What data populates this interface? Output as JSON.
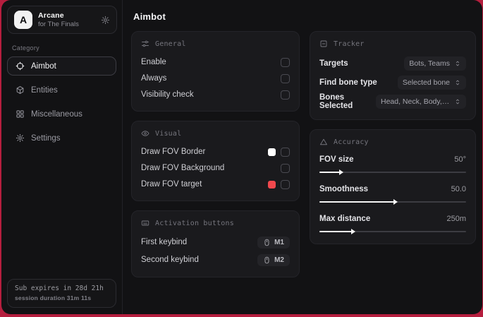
{
  "window": {
    "accent_red": "#b51e3e"
  },
  "sidebar": {
    "app": {
      "initial": "A",
      "name": "Arcane",
      "subtitle": "for The Finals"
    },
    "category_label": "Category",
    "items": [
      {
        "label": "Aimbot",
        "icon": "crosshair-icon",
        "active": true
      },
      {
        "label": "Entities",
        "icon": "entities-icon",
        "active": false
      },
      {
        "label": "Miscellaneous",
        "icon": "grid-icon",
        "active": false
      },
      {
        "label": "Settings",
        "icon": "gear-icon",
        "active": false
      }
    ],
    "subscription": {
      "line1": "Sub expires in 28d 21h",
      "line2": "session duration 31m 11s"
    }
  },
  "main": {
    "title": "Aimbot",
    "cards": {
      "general": {
        "title": "General",
        "icon": "sliders-icon",
        "rows": [
          {
            "label": "Enable",
            "checked": false
          },
          {
            "label": "Always",
            "checked": false
          },
          {
            "label": "Visibility check",
            "checked": false
          }
        ]
      },
      "visual": {
        "title": "Visual",
        "icon": "eye-icon",
        "rows": [
          {
            "label": "Draw FOV Border",
            "swatch": "#ffffff",
            "checked": false
          },
          {
            "label": "Draw FOV Background",
            "swatch": null,
            "checked": false
          },
          {
            "label": "Draw FOV target",
            "swatch": "#f0484d",
            "checked": false
          }
        ]
      },
      "activation": {
        "title": "Activation buttons",
        "icon": "keyboard-icon",
        "rows": [
          {
            "label": "First keybind",
            "key": "M1"
          },
          {
            "label": "Second keybind",
            "key": "M2"
          }
        ]
      },
      "tracker": {
        "title": "Tracker",
        "icon": "square-dash-icon",
        "rows": [
          {
            "label": "Targets",
            "value": "Bots, Teams"
          },
          {
            "label": "Find bone type",
            "value": "Selected bone"
          },
          {
            "label": "Bones Selected",
            "value": "Head, Neck, Body, Pe..."
          }
        ]
      },
      "accuracy": {
        "title": "Accuracy",
        "icon": "triangle-icon",
        "rows": [
          {
            "label": "FOV size",
            "value": "50°",
            "fill_pct": 14
          },
          {
            "label": "Smoothness",
            "value": "50.0",
            "fill_pct": 51
          },
          {
            "label": "Max distance",
            "value": "250m",
            "fill_pct": 22
          }
        ]
      }
    }
  }
}
